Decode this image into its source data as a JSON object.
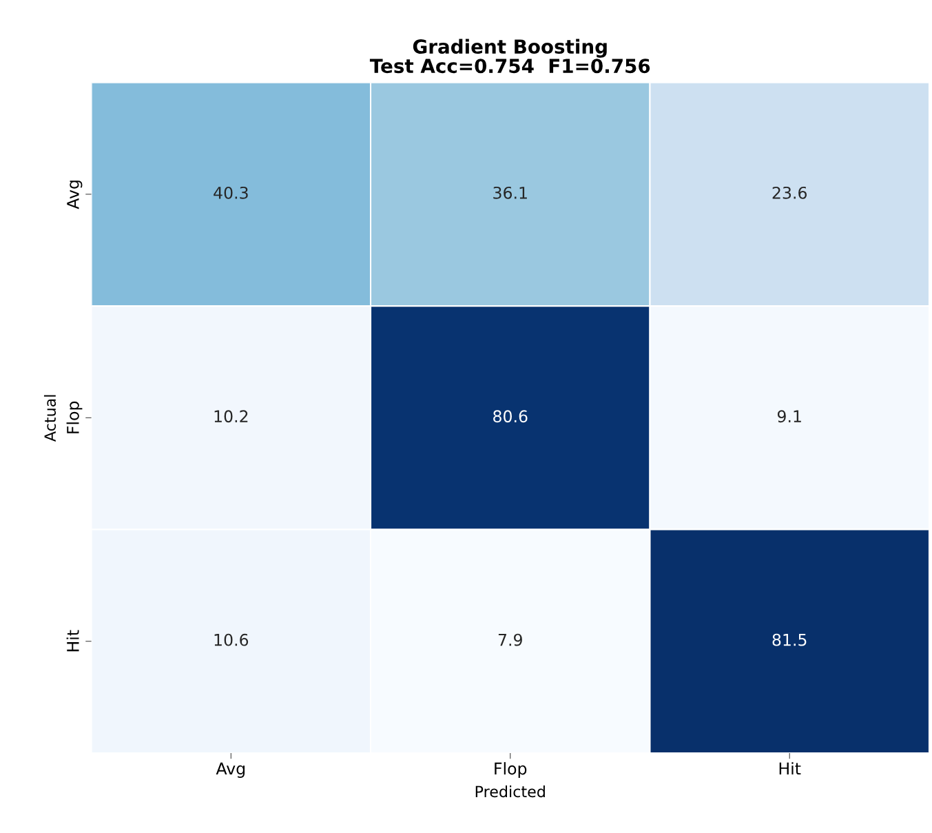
{
  "chart_data": {
    "type": "heatmap",
    "title": "Gradient Boosting\nTest Acc=0.754  F1=0.756",
    "xlabel": "Predicted",
    "ylabel": "Actual",
    "categories": [
      "Avg",
      "Flop",
      "Hit"
    ],
    "y_categories": [
      "Avg",
      "Flop",
      "Hit"
    ],
    "cells": [
      [
        40.3,
        36.1,
        23.6
      ],
      [
        10.2,
        80.6,
        9.1
      ],
      [
        10.6,
        7.9,
        81.5
      ]
    ],
    "data_labels": true
  }
}
